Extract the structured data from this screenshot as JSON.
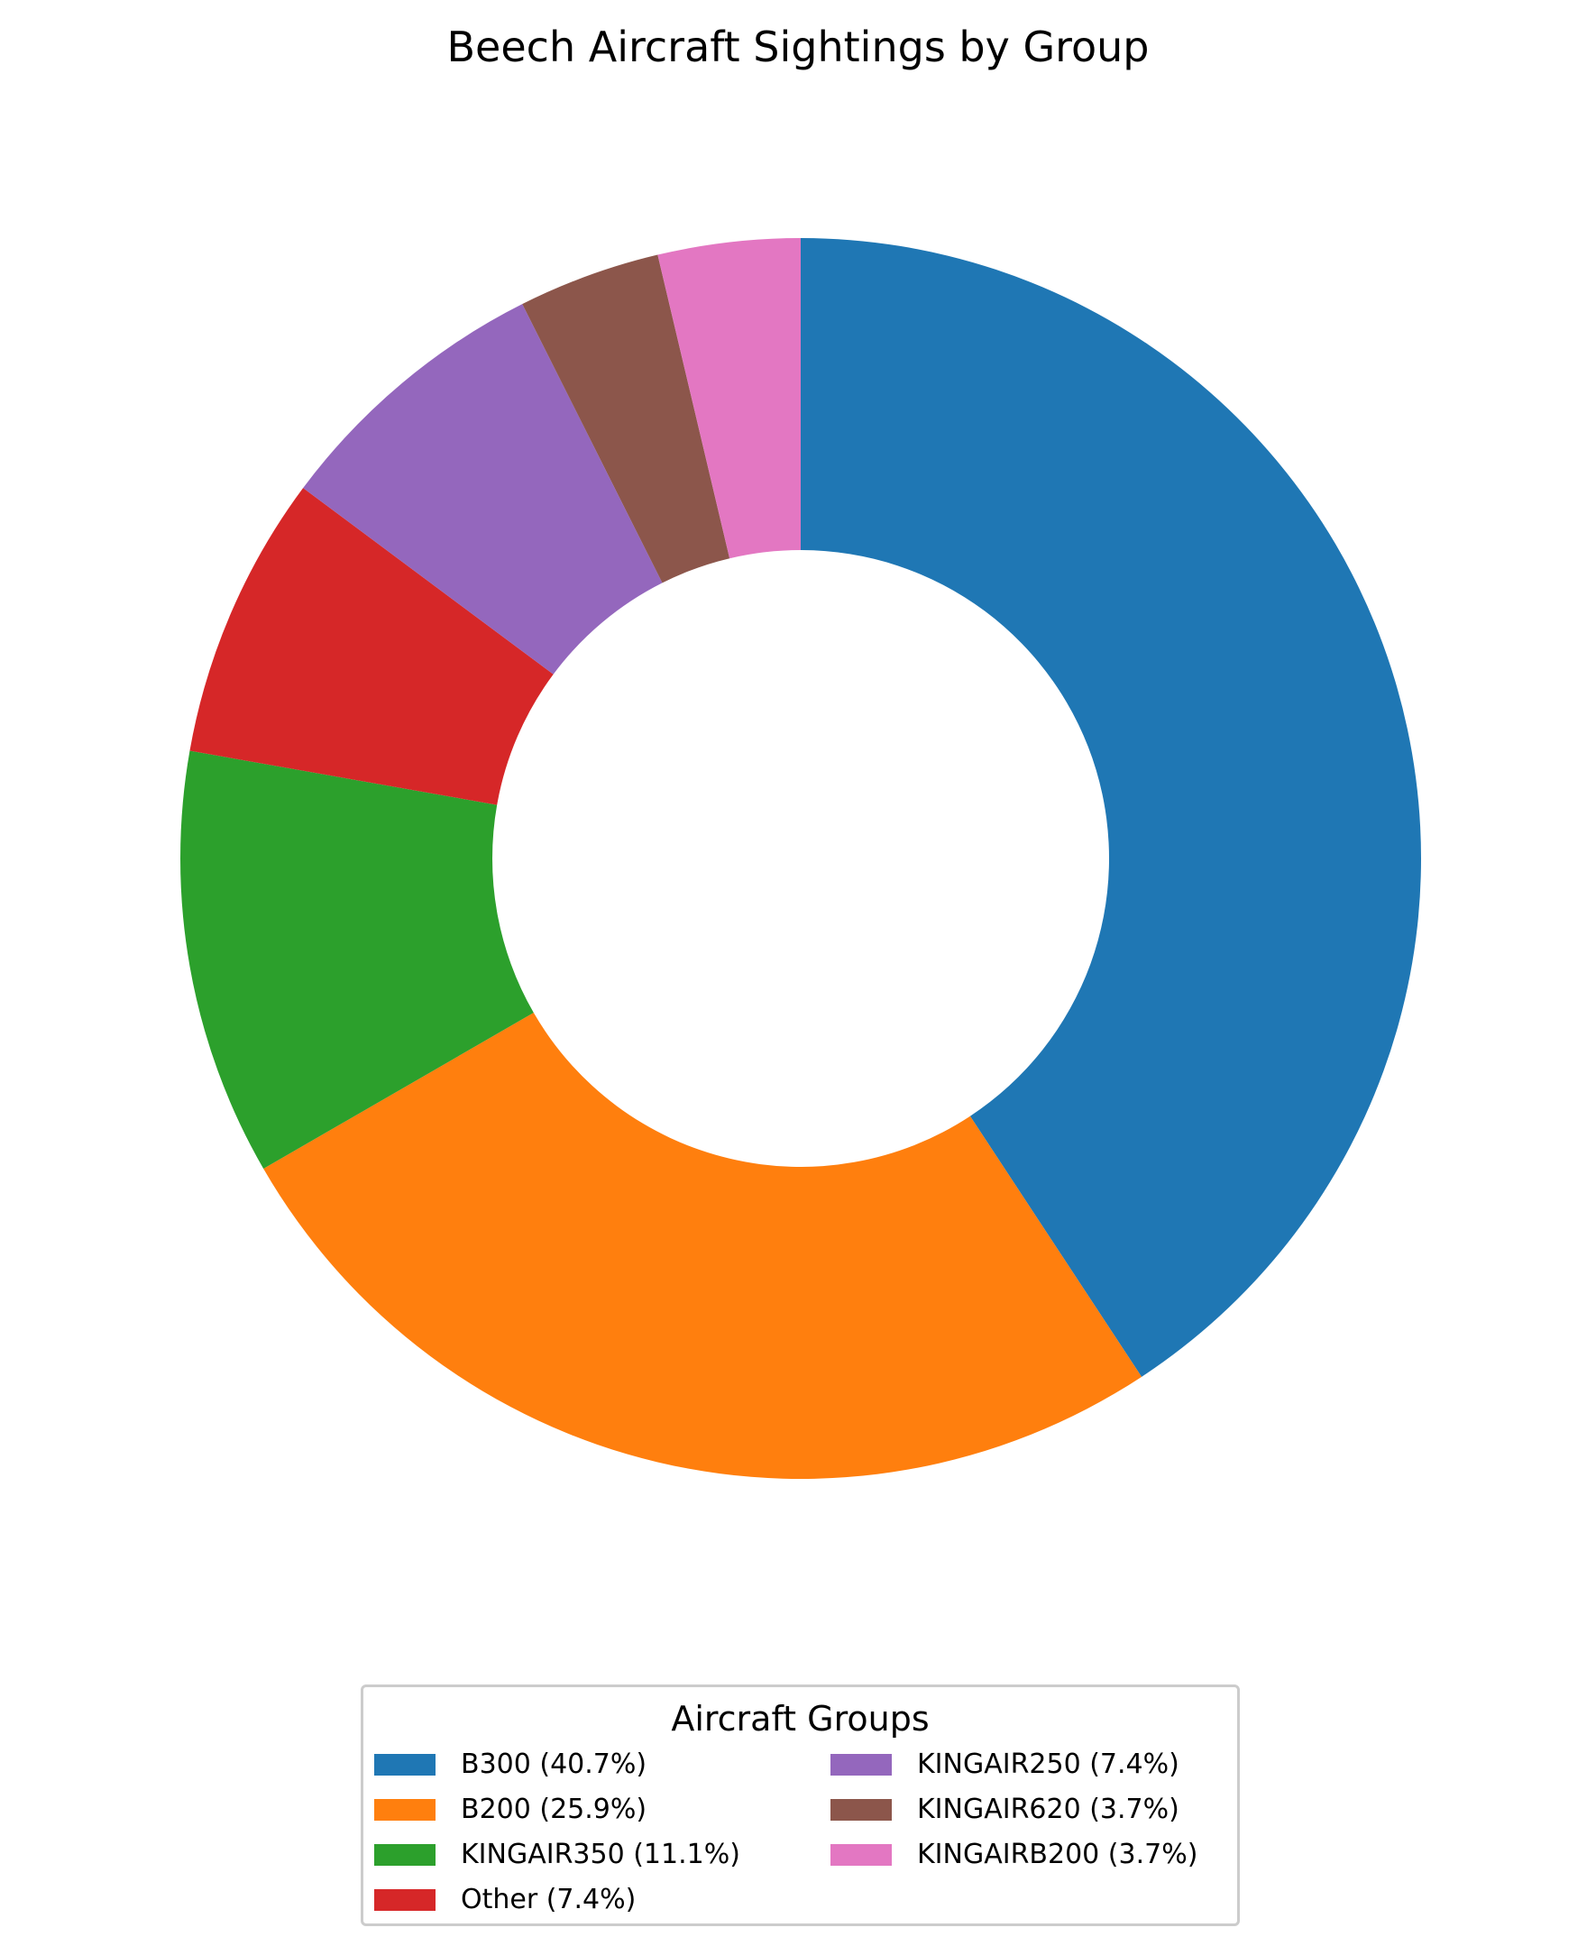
{
  "chart_data": {
    "type": "pie",
    "style": "donut",
    "title": "Beech Aircraft Sightings by Group",
    "categories": [
      "B300",
      "B200",
      "KINGAIR350",
      "Other",
      "KINGAIR250",
      "KINGAIR620",
      "KINGAIRB200"
    ],
    "values": [
      40.7,
      25.9,
      11.1,
      7.4,
      7.4,
      3.7,
      3.7
    ],
    "colors": [
      "#1f77b4",
      "#ff7f0e",
      "#2ca02c",
      "#d62728",
      "#9467bd",
      "#8c564b",
      "#e377c2"
    ],
    "legend": {
      "title": "Aircraft Groups",
      "placement": "bottom-center",
      "columns": 2,
      "entries": [
        "B300 (40.7%)",
        "B200 (25.9%)",
        "KINGAIR350 (11.1%)",
        "Other (7.4%)",
        "KINGAIR250 (7.4%)",
        "KINGAIR620 (3.7%)",
        "KINGAIRB200 (3.7%)"
      ]
    }
  }
}
